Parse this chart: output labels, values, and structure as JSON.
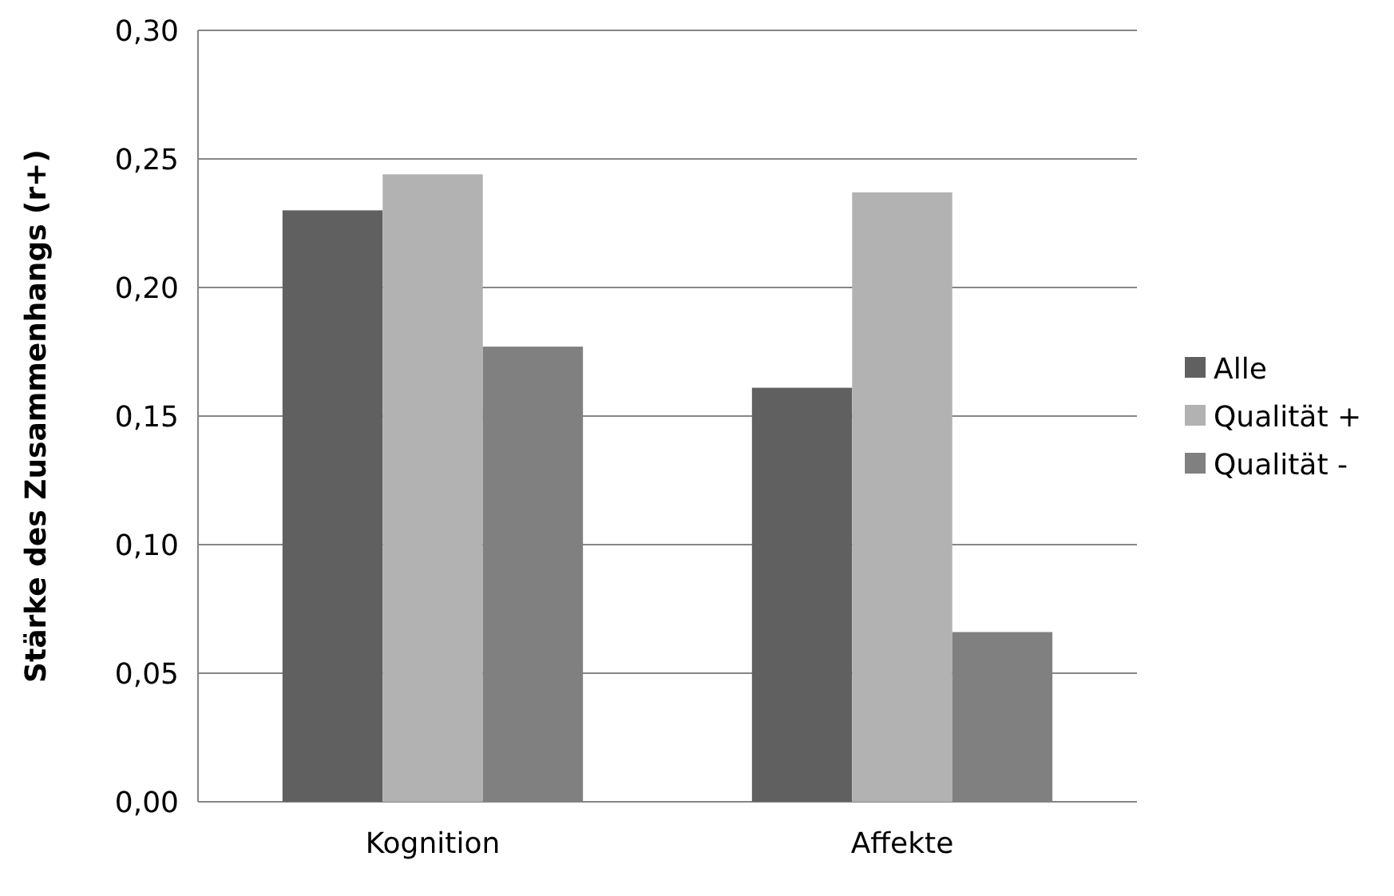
{
  "chart_data": {
    "type": "bar",
    "ylabel": "Stärke des Zusammenhangs  (r+)",
    "categories": [
      "Kognition",
      "Affekte"
    ],
    "series": [
      {
        "name": "Alle",
        "color": "#606060",
        "values": [
          0.23,
          0.161
        ]
      },
      {
        "name": "Qualität +",
        "color": "#b2b2b2",
        "values": [
          0.244,
          0.237
        ]
      },
      {
        "name": "Qualität -",
        "color": "#808080",
        "values": [
          0.177,
          0.066
        ]
      }
    ],
    "ylim": [
      0,
      0.3
    ],
    "yticks": [
      {
        "value": 0,
        "label": "0,00"
      },
      {
        "value": 0.05,
        "label": "0,05"
      },
      {
        "value": 0.1,
        "label": "0,10"
      },
      {
        "value": 0.15,
        "label": "0,15"
      },
      {
        "value": 0.2,
        "label": "0,20"
      },
      {
        "value": 0.25,
        "label": "0,25"
      },
      {
        "value": 0.3,
        "label": "0,30"
      }
    ],
    "grid": "y",
    "legend": "right"
  }
}
